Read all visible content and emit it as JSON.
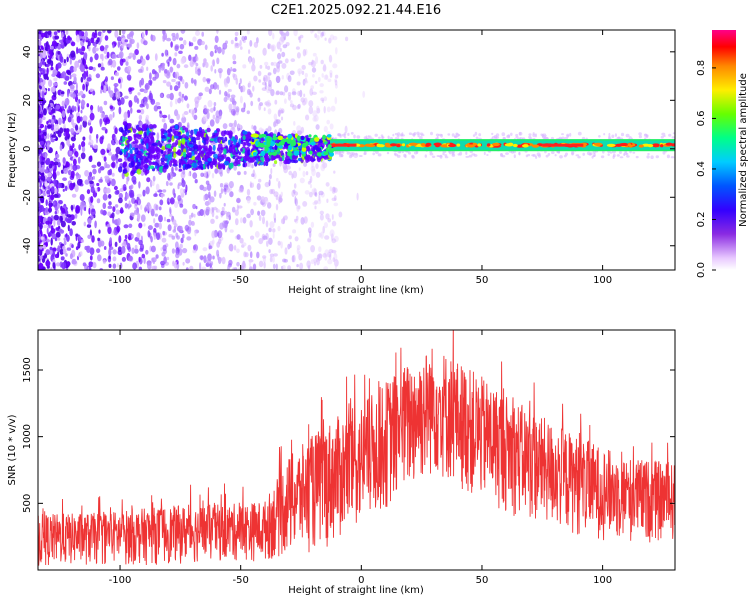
{
  "title": "C2E1.2025.092.21.44.E16",
  "chart_data": [
    {
      "type": "heatmap",
      "xlabel": "Height of straight line (km)",
      "ylabel": "Frequency (Hz)",
      "xlim": [
        -134,
        130
      ],
      "ylim": [
        -50,
        49
      ],
      "xticks": [
        -100,
        -50,
        0,
        50,
        100
      ],
      "yticks": [
        -40,
        -20,
        0,
        20,
        40
      ],
      "band": {
        "center_hz": 1.5,
        "half_width_hz": 2.5,
        "starts_km": -13
      },
      "grid": false
    },
    {
      "type": "colorbar",
      "label": "Normalized spectral amplitude",
      "ylim": [
        0,
        0.95
      ],
      "ticks": [
        0.0,
        0.2,
        0.4,
        0.6,
        0.8
      ]
    },
    {
      "type": "line",
      "xlabel": "Height of straight line (km)",
      "ylabel": "SNR (10 * v/v)",
      "xlim": [
        -134,
        130
      ],
      "ylim": [
        0,
        1800
      ],
      "xticks": [
        -100,
        -50,
        0,
        50,
        100
      ],
      "yticks": [
        500,
        1000,
        1500
      ],
      "color": "#ee3333",
      "envelope": [
        {
          "x": -134,
          "lo": 20,
          "hi": 420
        },
        {
          "x": -110,
          "lo": 30,
          "hi": 430
        },
        {
          "x": -80,
          "lo": 40,
          "hi": 480
        },
        {
          "x": -50,
          "lo": 60,
          "hi": 500
        },
        {
          "x": -40,
          "lo": 60,
          "hi": 520
        },
        {
          "x": -30,
          "lo": 100,
          "hi": 850
        },
        {
          "x": -15,
          "lo": 150,
          "hi": 1100
        },
        {
          "x": 0,
          "lo": 300,
          "hi": 1250
        },
        {
          "x": 15,
          "lo": 500,
          "hi": 1500
        },
        {
          "x": 30,
          "lo": 700,
          "hi": 1700
        },
        {
          "x": 50,
          "lo": 500,
          "hi": 1450
        },
        {
          "x": 70,
          "lo": 350,
          "hi": 1200
        },
        {
          "x": 90,
          "lo": 250,
          "hi": 1000
        },
        {
          "x": 110,
          "lo": 200,
          "hi": 850
        },
        {
          "x": 130,
          "lo": 200,
          "hi": 800
        }
      ]
    }
  ]
}
